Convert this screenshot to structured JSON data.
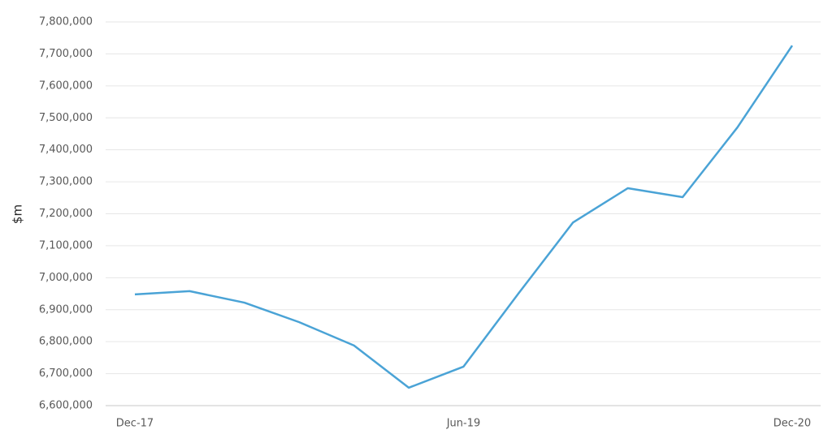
{
  "chart_data": {
    "type": "line",
    "y_label": "$m",
    "categories": [
      "Dec-17",
      null,
      null,
      null,
      null,
      null,
      "Jun-19",
      null,
      null,
      null,
      null,
      null,
      "Dec-20"
    ],
    "series": [
      {
        "name": "$m",
        "color": "#4aa3d6",
        "values": [
          6948000,
          6958000,
          6922000,
          6861000,
          6788000,
          6656000,
          6722000,
          6950000,
          7173000,
          7280000,
          7252000,
          7470000,
          7726000
        ]
      }
    ],
    "ylim": [
      6600000,
      7800000
    ],
    "yticks": [
      {
        "value": 6600000,
        "label": "6,600,000"
      },
      {
        "value": 6700000,
        "label": "6,700,000"
      },
      {
        "value": 6800000,
        "label": "6,800,000"
      },
      {
        "value": 6900000,
        "label": "6,900,000"
      },
      {
        "value": 7000000,
        "label": "7,000,000"
      },
      {
        "value": 7100000,
        "label": "7,100,000"
      },
      {
        "value": 7200000,
        "label": "7,200,000"
      },
      {
        "value": 7300000,
        "label": "7,300,000"
      },
      {
        "value": 7400000,
        "label": "7,400,000"
      },
      {
        "value": 7500000,
        "label": "7,500,000"
      },
      {
        "value": 7600000,
        "label": "7,600,000"
      },
      {
        "value": 7700000,
        "label": "7,700,000"
      },
      {
        "value": 7800000,
        "label": "7,800,000"
      }
    ],
    "grid": true
  }
}
